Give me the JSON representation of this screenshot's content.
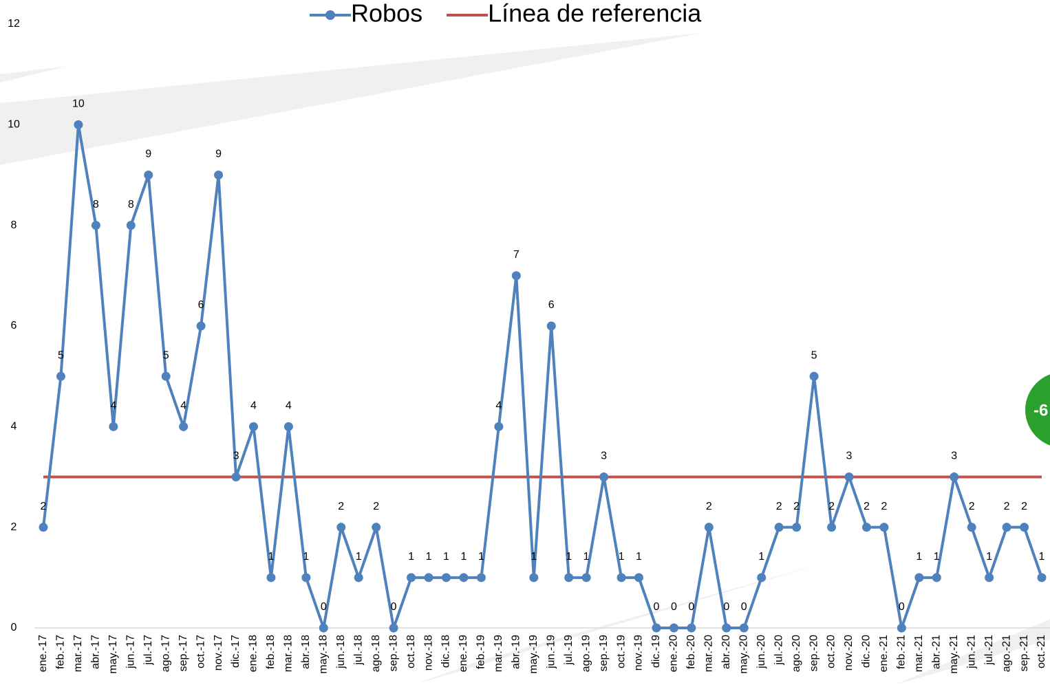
{
  "chart_data": {
    "type": "line",
    "categories": [
      "ene.-17",
      "feb.-17",
      "mar.-17",
      "abr.-17",
      "may.-17",
      "jun.-17",
      "jul.-17",
      "ago.-17",
      "sep.-17",
      "oct.-17",
      "nov.-17",
      "dic.-17",
      "ene.-18",
      "feb.-18",
      "mar.-18",
      "abr.-18",
      "may.-18",
      "jun.-18",
      "jul.-18",
      "ago.-18",
      "sep.-18",
      "oct.-18",
      "nov.-18",
      "dic.-18",
      "ene.-19",
      "feb.-19",
      "mar.-19",
      "abr.-19",
      "may.-19",
      "jun.-19",
      "jul.-19",
      "ago.-19",
      "sep.-19",
      "oct.-19",
      "nov.-19",
      "dic.-19",
      "ene.-20",
      "feb.-20",
      "mar.-20",
      "abr.-20",
      "may.-20",
      "jun.-20",
      "jul.-20",
      "ago.-20",
      "sep.-20",
      "oct.-20",
      "nov.-20",
      "dic.-20",
      "ene.-21",
      "feb.-21",
      "mar.-21",
      "abr.-21",
      "may.-21",
      "jun.-21",
      "jul.-21",
      "ago.-21",
      "sep.-21",
      "oct.-21"
    ],
    "series": [
      {
        "name": "Robos",
        "color": "#4f81bd",
        "data_labels": true,
        "values": [
          2,
          5,
          10,
          8,
          4,
          8,
          9,
          5,
          4,
          6,
          9,
          3,
          4,
          1,
          4,
          1,
          0,
          2,
          1,
          2,
          0,
          1,
          1,
          1,
          1,
          1,
          4,
          7,
          1,
          6,
          1,
          1,
          3,
          1,
          1,
          0,
          0,
          0,
          2,
          0,
          0,
          1,
          2,
          2,
          5,
          2,
          3,
          2,
          2,
          0,
          1,
          1,
          3,
          2,
          1,
          2,
          2,
          1
        ]
      },
      {
        "name": "Línea de referencia",
        "color": "#c0504d",
        "data_labels": false,
        "values": [
          3,
          3,
          3,
          3,
          3,
          3,
          3,
          3,
          3,
          3,
          3,
          3,
          3,
          3,
          3,
          3,
          3,
          3,
          3,
          3,
          3,
          3,
          3,
          3,
          3,
          3,
          3,
          3,
          3,
          3,
          3,
          3,
          3,
          3,
          3,
          3,
          3,
          3,
          3,
          3,
          3,
          3,
          3,
          3,
          3,
          3,
          3,
          3,
          3,
          3,
          3,
          3,
          3,
          3,
          3,
          3,
          3,
          3
        ]
      }
    ],
    "ylim": [
      0,
      12
    ],
    "yticks": [
      0,
      2,
      4,
      6,
      8,
      10,
      12
    ],
    "annotation": "-6"
  }
}
